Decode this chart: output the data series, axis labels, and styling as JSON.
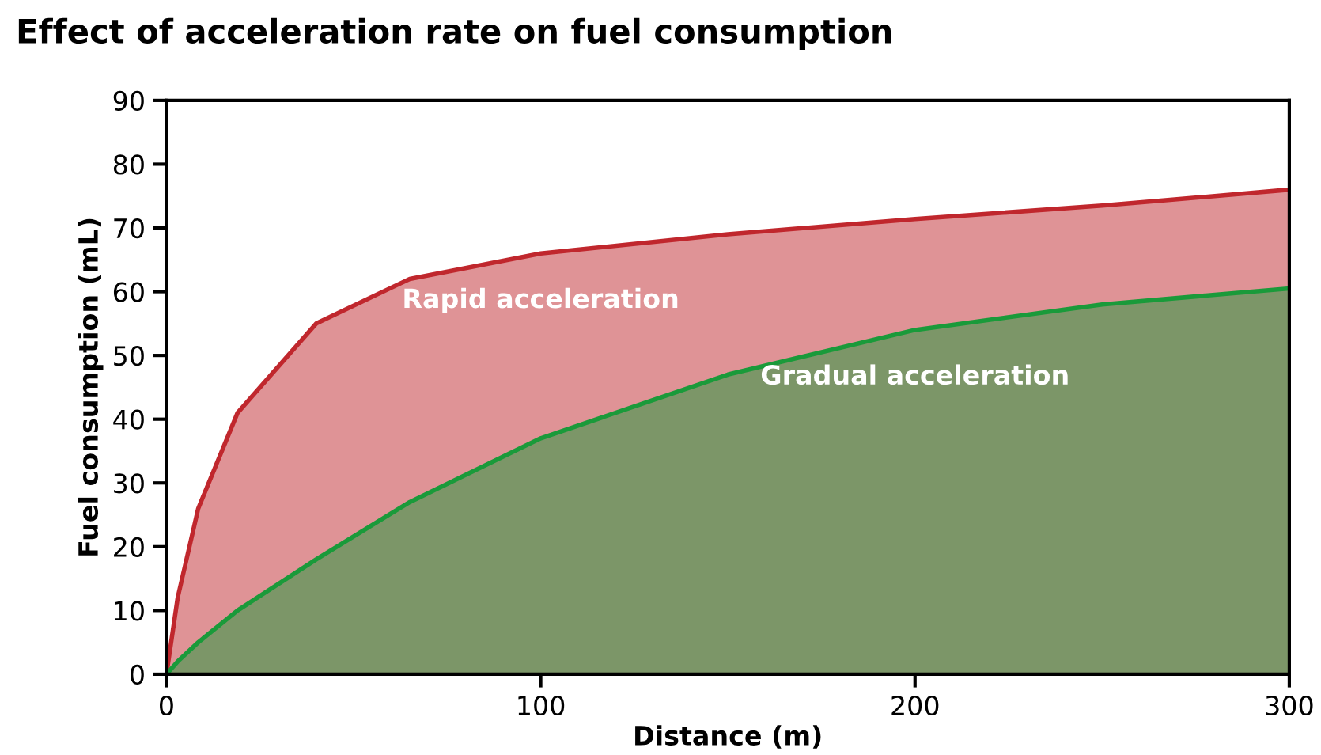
{
  "chart_data": {
    "type": "area",
    "title": "Effect of acceleration rate on fuel consumption",
    "xlabel": "Distance (m)",
    "ylabel": "Fuel consumption (mL)",
    "x": [
      0,
      3,
      8.5,
      19,
      40,
      65,
      100,
      150,
      200,
      250,
      300
    ],
    "series": [
      {
        "name": "Rapid acceleration",
        "color": "#c0272d",
        "values": [
          0,
          12,
          26,
          41,
          55,
          62,
          66,
          69,
          71.4,
          73.5,
          76
        ]
      },
      {
        "name": "Gradual acceleration",
        "color": "#1a9a3a",
        "values": [
          0,
          2,
          5,
          10,
          18,
          27,
          37,
          47,
          54,
          58,
          60.5
        ]
      }
    ],
    "xlim": [
      0,
      300
    ],
    "xticks": [
      0,
      100,
      200,
      300
    ],
    "ylim": [
      0,
      90
    ],
    "yticks": [
      0,
      10,
      20,
      30,
      40,
      50,
      60,
      70,
      80,
      90
    ],
    "grid": false,
    "legend": false
  }
}
